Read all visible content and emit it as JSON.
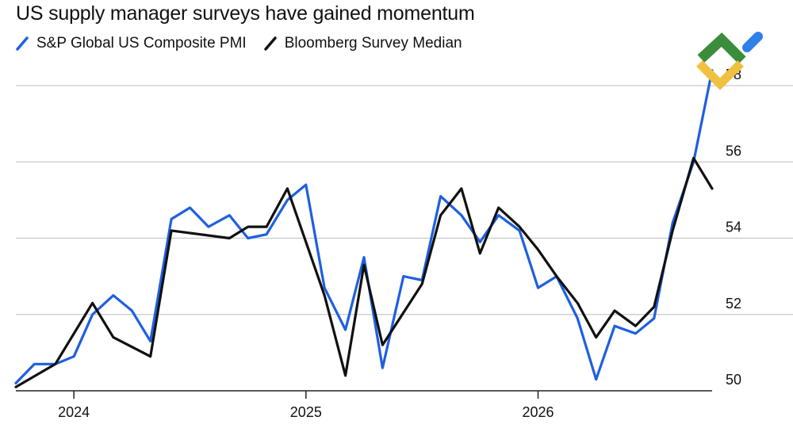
{
  "title": "US supply manager surveys have gained momentum",
  "legend": [
    {
      "label": "S&P Global US Composite PMI",
      "color": "#1f5fe0",
      "icon": "slash-line-icon"
    },
    {
      "label": "Bloomberg Survey Median",
      "color": "#111111",
      "icon": "slash-line-icon"
    }
  ],
  "colors": {
    "grid": "#c9c9c9",
    "axis": "#222222",
    "text": "#111111"
  },
  "watermark_icon": "chevron-logo-icon",
  "chart_data": {
    "type": "line",
    "title": "US supply manager surveys have gained momentum",
    "xlabel": "",
    "ylabel": "",
    "x_axis": {
      "ticks": [
        2024,
        2025,
        2026
      ],
      "tick_labels": [
        "2024",
        "2025",
        "2026"
      ],
      "range": [
        2023.75,
        2026.75
      ]
    },
    "ylim": [
      50,
      58
    ],
    "y_ticks": [
      50,
      52,
      54,
      56,
      58
    ],
    "y_tick_labels": [
      "50",
      "52",
      "54",
      "56",
      "58"
    ],
    "y_axis_side": "right",
    "grid": true,
    "legend_position": "top-left",
    "series": [
      {
        "name": "S&P Global US Composite PMI",
        "color": "#1f5fe0",
        "points": [
          [
            2023.75,
            50.2
          ],
          [
            2023.83,
            50.7
          ],
          [
            2023.92,
            50.7
          ],
          [
            2024.0,
            50.9
          ],
          [
            2024.08,
            52.0
          ],
          [
            2024.17,
            52.5
          ],
          [
            2024.25,
            52.1
          ],
          [
            2024.33,
            51.3
          ],
          [
            2024.42,
            54.5
          ],
          [
            2024.5,
            54.8
          ],
          [
            2024.58,
            54.3
          ],
          [
            2024.67,
            54.6
          ],
          [
            2024.75,
            54.0
          ],
          [
            2024.83,
            54.1
          ],
          [
            2024.92,
            55.0
          ],
          [
            2025.0,
            55.4
          ],
          [
            2025.08,
            52.7
          ],
          [
            2025.17,
            51.6
          ],
          [
            2025.25,
            53.5
          ],
          [
            2025.33,
            50.6
          ],
          [
            2025.42,
            53.0
          ],
          [
            2025.5,
            52.9
          ],
          [
            2025.58,
            55.1
          ],
          [
            2025.67,
            54.6
          ],
          [
            2025.75,
            53.9
          ],
          [
            2025.83,
            54.6
          ],
          [
            2025.92,
            54.2
          ],
          [
            2026.0,
            52.7
          ],
          [
            2026.08,
            53.0
          ],
          [
            2026.17,
            51.9
          ],
          [
            2026.25,
            50.3
          ],
          [
            2026.33,
            51.7
          ],
          [
            2026.42,
            51.5
          ],
          [
            2026.5,
            51.9
          ],
          [
            2026.58,
            54.4
          ],
          [
            2026.67,
            56.0
          ],
          [
            2026.75,
            58.4
          ]
        ]
      },
      {
        "name": "Bloomberg Survey Median",
        "color": "#111111",
        "points": [
          [
            2023.75,
            50.1
          ],
          [
            2023.92,
            50.7
          ],
          [
            2024.08,
            52.3
          ],
          [
            2024.17,
            51.4
          ],
          [
            2024.33,
            50.9
          ],
          [
            2024.42,
            54.2
          ],
          [
            2024.67,
            54.0
          ],
          [
            2024.75,
            54.3
          ],
          [
            2024.83,
            54.3
          ],
          [
            2024.92,
            55.3
          ],
          [
            2025.08,
            52.5
          ],
          [
            2025.17,
            50.4
          ],
          [
            2025.25,
            53.3
          ],
          [
            2025.33,
            51.2
          ],
          [
            2025.5,
            52.8
          ],
          [
            2025.58,
            54.6
          ],
          [
            2025.67,
            55.3
          ],
          [
            2025.75,
            53.6
          ],
          [
            2025.83,
            54.8
          ],
          [
            2025.92,
            54.3
          ],
          [
            2026.0,
            53.7
          ],
          [
            2026.08,
            53.0
          ],
          [
            2026.17,
            52.3
          ],
          [
            2026.25,
            51.4
          ],
          [
            2026.33,
            52.1
          ],
          [
            2026.42,
            51.7
          ],
          [
            2026.5,
            52.2
          ],
          [
            2026.58,
            54.2
          ],
          [
            2026.67,
            56.1
          ],
          [
            2026.75,
            55.3
          ]
        ]
      }
    ]
  }
}
